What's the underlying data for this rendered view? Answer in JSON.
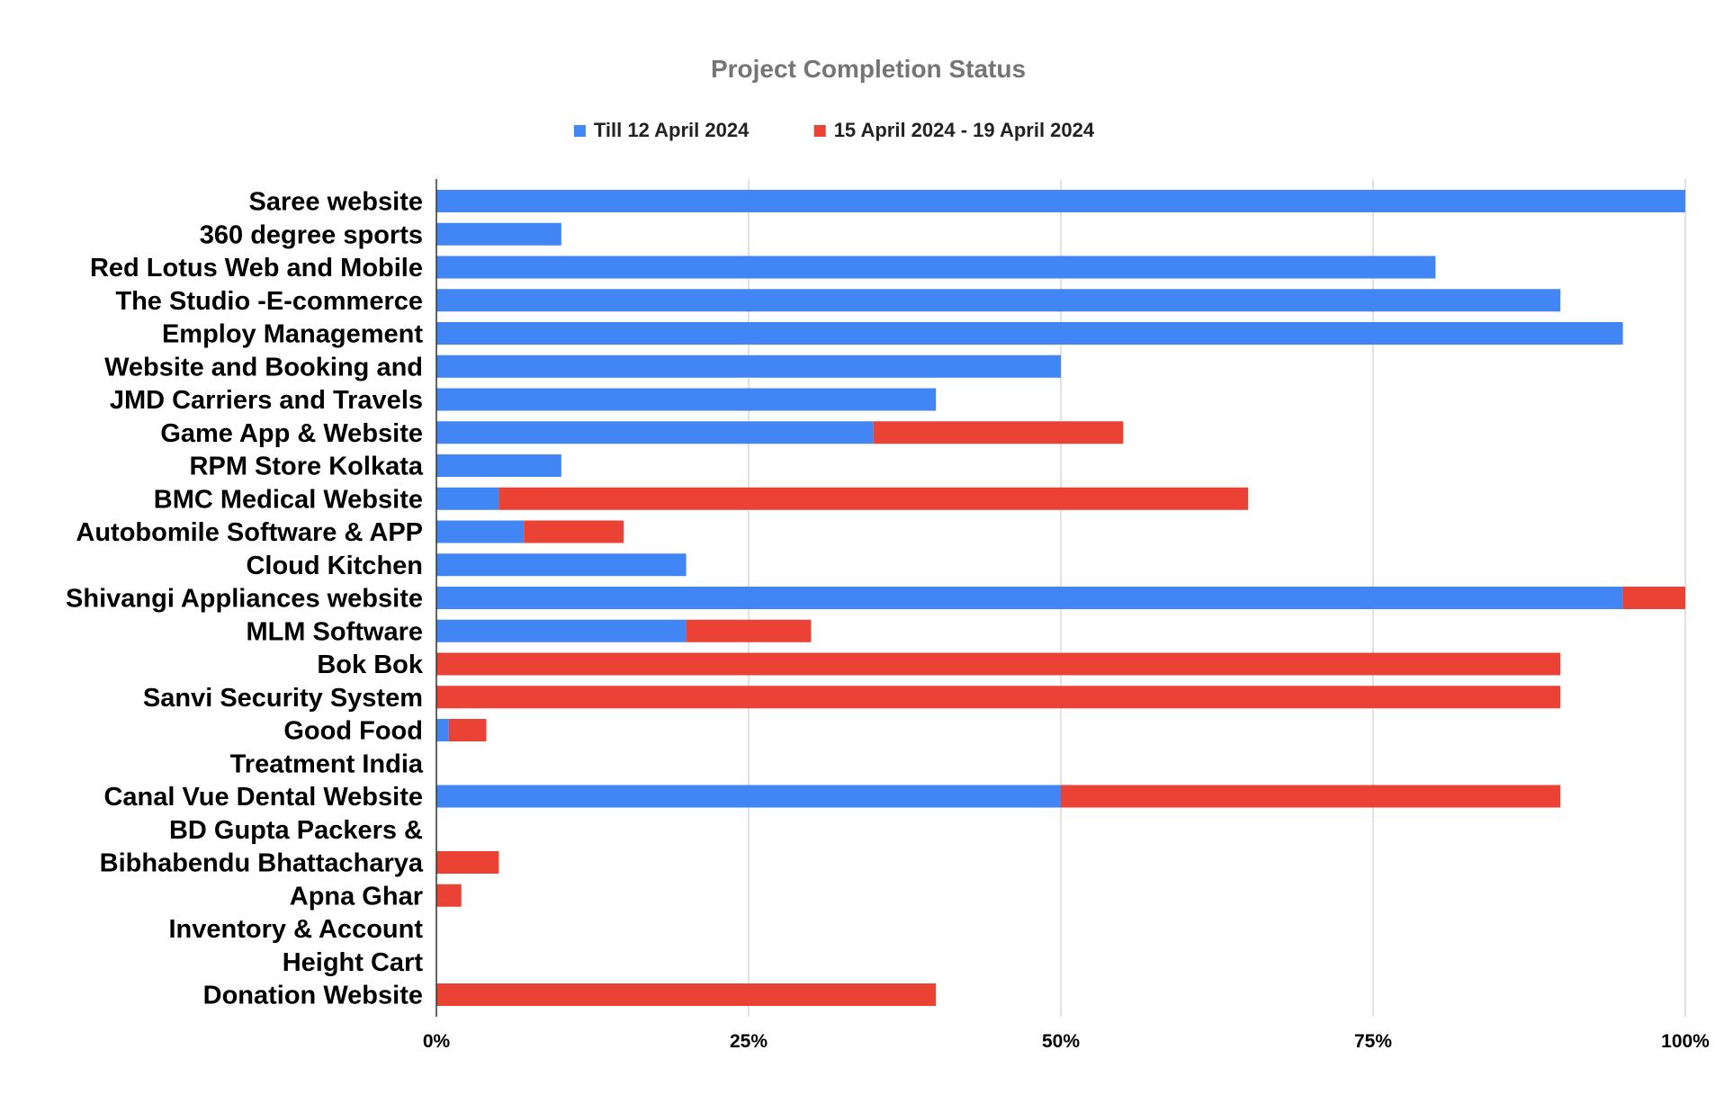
{
  "chart_data": {
    "type": "bar",
    "orientation": "horizontal",
    "stacked": true,
    "title": "Project Completion Status",
    "xlabel": "",
    "ylabel": "",
    "xlim": [
      0,
      100
    ],
    "x_ticks": [
      "0%",
      "25%",
      "50%",
      "75%",
      "100%"
    ],
    "x_tick_values": [
      0,
      25,
      50,
      75,
      100
    ],
    "grid": "vertical",
    "legend_position": "top",
    "categories": [
      "Saree website",
      "360 degree sports",
      "Red Lotus Web and Mobile",
      "The Studio -E-commerce",
      "Employ Management",
      "Website and Booking and",
      "JMD Carriers and Travels",
      "Game App & Website",
      "RPM Store Kolkata",
      "BMC Medical Website",
      "Autobomile Software & APP",
      "Cloud Kitchen",
      "Shivangi Appliances website",
      "MLM Software",
      "Bok Bok",
      "Sanvi Security System",
      "Good Food",
      "Treatment  India",
      "Canal Vue Dental Website",
      "BD Gupta Packers &",
      "Bibhabendu Bhattacharya",
      "Apna Ghar",
      "Inventory & Account",
      "Height Cart",
      "Donation Website"
    ],
    "series": [
      {
        "name": "Till 12 April 2024",
        "color": "#4285f4",
        "values": [
          100,
          10,
          80,
          90,
          95,
          50,
          40,
          35,
          10,
          5,
          7,
          20,
          95,
          20,
          0,
          0,
          1,
          0,
          50,
          0,
          0,
          0,
          0,
          0,
          0
        ]
      },
      {
        "name": "15 April 2024 - 19 April 2024",
        "color": "#ea4335",
        "values": [
          0,
          0,
          0,
          0,
          0,
          0,
          0,
          20,
          0,
          60,
          8,
          0,
          5,
          10,
          90,
          90,
          3,
          0,
          40,
          0,
          5,
          2,
          0,
          0,
          40
        ]
      }
    ]
  }
}
